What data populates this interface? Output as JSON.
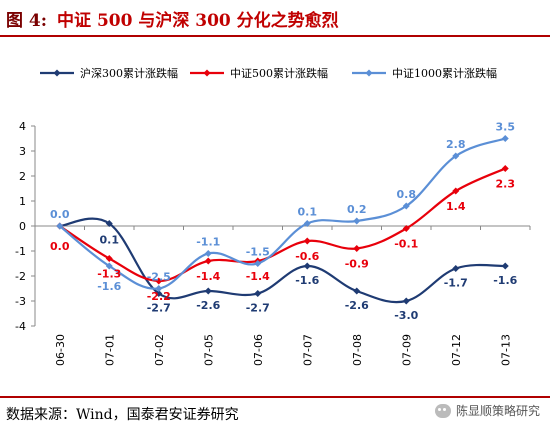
{
  "header": {
    "figure_label": "图 4:",
    "title": "中证 500 与沪深 300 分化之势愈烈"
  },
  "footer": {
    "source": "数据来源：Wind，国泰君安证券研究",
    "watermark": "陈显顺策略研究"
  },
  "chart_data": {
    "type": "line",
    "categories": [
      "06-30",
      "07-01",
      "07-02",
      "07-05",
      "07-06",
      "07-07",
      "07-08",
      "07-09",
      "07-12",
      "07-13"
    ],
    "ylim": [
      -4,
      4
    ],
    "yticks": [
      4,
      3,
      2,
      1,
      0,
      -1,
      -2,
      -3,
      -4
    ],
    "grid": false,
    "legend_position": "top",
    "series": [
      {
        "name": "沪深300累计涨跌幅",
        "color": "#1f3b73",
        "values": [
          0.0,
          0.1,
          -2.7,
          -2.6,
          -2.7,
          -1.6,
          -2.6,
          -3.0,
          -1.7,
          -1.6
        ],
        "labels": [
          "",
          "0.1",
          "-2.7",
          "-2.6",
          "-2.7",
          "-1.6",
          "-2.6",
          "-3.0",
          "-1.7",
          "-1.6"
        ]
      },
      {
        "name": "中证500累计涨跌幅",
        "color": "#e8000b",
        "values": [
          0.0,
          -1.3,
          -2.2,
          -1.4,
          -1.4,
          -0.6,
          -0.9,
          -0.1,
          1.4,
          2.3
        ],
        "labels": [
          "0.0",
          "-1.3",
          "-2.2",
          "-1.4",
          "-1.4",
          "-0.6",
          "-0.9",
          "-0.1",
          "1.4",
          "2.3"
        ]
      },
      {
        "name": "中证1000累计涨跌幅",
        "color": "#5b8fd6",
        "values": [
          0.0,
          -1.6,
          -2.5,
          -1.1,
          -1.5,
          0.1,
          0.2,
          0.8,
          2.8,
          3.5
        ],
        "labels": [
          "0.0",
          "-1.6",
          "-2.5",
          "-1.1",
          "-1.5",
          "0.1",
          "0.2",
          "0.8",
          "2.8",
          "3.5"
        ]
      }
    ]
  }
}
